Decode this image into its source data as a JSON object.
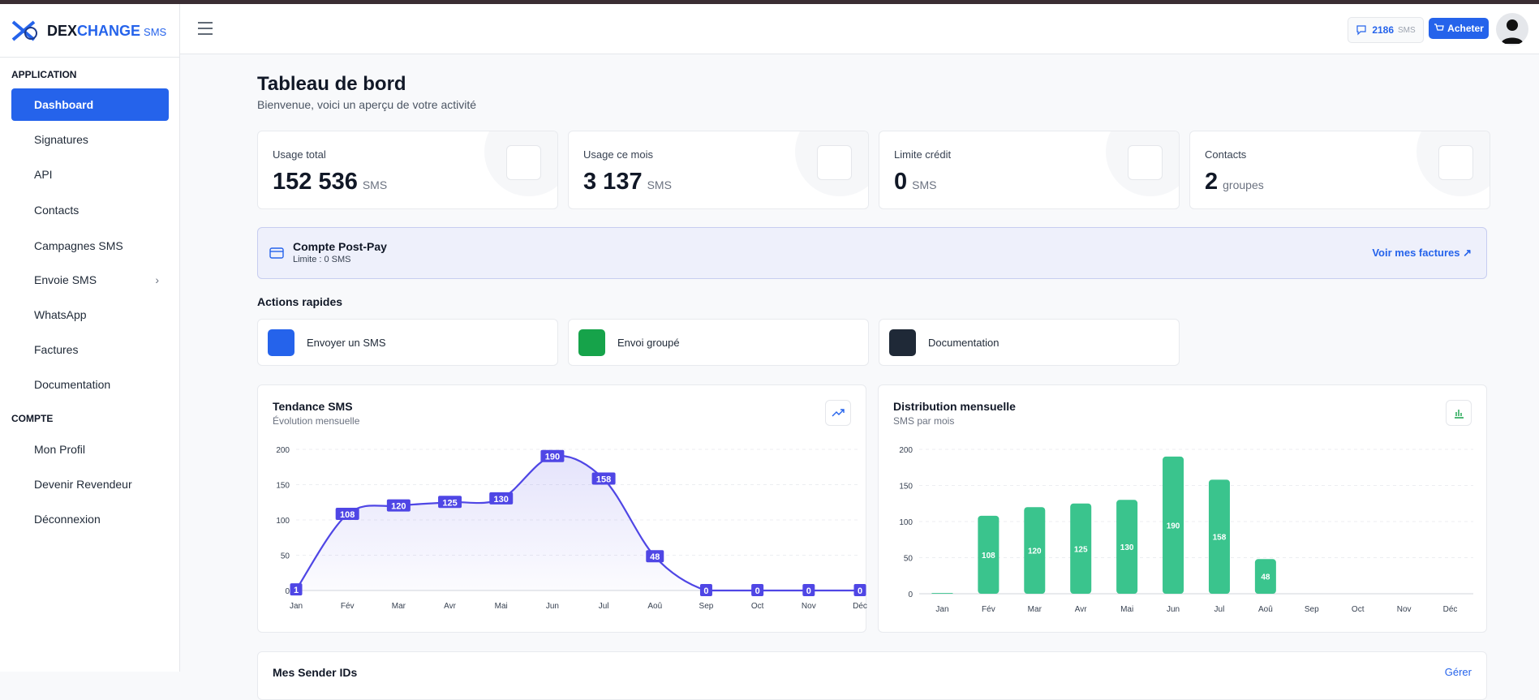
{
  "header": {
    "logo_a": "DEX",
    "logo_b": "CHANGE",
    "logo_c": "SMS",
    "balance": "2186",
    "balance_unit": "SMS",
    "buy": "Acheter"
  },
  "sidebar": {
    "sections": [
      {
        "title": "APPLICATION",
        "items": [
          "Dashboard",
          "Signatures",
          "API",
          "Contacts",
          "Campagnes SMS",
          "Envoie SMS",
          "WhatsApp",
          "Factures",
          "Documentation"
        ]
      },
      {
        "title": "COMPTE",
        "items": [
          "Mon Profil",
          "Devenir Revendeur",
          "Déconnexion"
        ]
      }
    ]
  },
  "page": {
    "title": "Tableau de bord",
    "subtitle": "Bienvenue, voici un aperçu de votre activité"
  },
  "stats": [
    {
      "label": "Usage total",
      "value": "152 536",
      "unit": "SMS"
    },
    {
      "label": "Usage ce mois",
      "value": "3 137",
      "unit": "SMS"
    },
    {
      "label": "Limite crédit",
      "value": "0",
      "unit": "SMS"
    },
    {
      "label": "Contacts",
      "value": "2",
      "unit": "groupes"
    }
  ],
  "banner": {
    "title": "Compte Post-Pay",
    "subtitle": "Limite : 0 SMS",
    "link": "Voir mes factures"
  },
  "actions": {
    "title": "Actions rapides",
    "items": [
      "Envoyer un SMS",
      "Envoi groupé",
      "Documentation"
    ]
  },
  "section": {
    "title": "Mes Sender IDs",
    "link": "Gérer"
  },
  "chart_data": [
    {
      "type": "line",
      "title": "Tendance SMS",
      "subtitle": "Évolution mensuelle",
      "categories": [
        "Jan",
        "Fév",
        "Mar",
        "Avr",
        "Mai",
        "Jun",
        "Jul",
        "Aoû",
        "Sep",
        "Oct",
        "Nov",
        "Déc"
      ],
      "values": [
        1,
        108,
        120,
        125,
        130,
        190,
        158,
        48,
        0,
        0,
        0,
        0
      ],
      "ylim": [
        0,
        200
      ],
      "yticks": [
        0,
        50,
        100,
        150,
        200
      ],
      "color": "#4f46e5",
      "grid": true
    },
    {
      "type": "bar",
      "title": "Distribution mensuelle",
      "subtitle": "SMS par mois",
      "categories": [
        "Jan",
        "Fév",
        "Mar",
        "Avr",
        "Mai",
        "Jun",
        "Jul",
        "Aoû",
        "Sep",
        "Oct",
        "Nov",
        "Déc"
      ],
      "values": [
        1,
        108,
        120,
        125,
        130,
        190,
        158,
        48,
        0,
        0,
        0,
        0
      ],
      "ylim": [
        0,
        200
      ],
      "yticks": [
        0,
        50,
        100,
        150,
        200
      ],
      "color": "#3ac48d",
      "grid": true
    }
  ]
}
